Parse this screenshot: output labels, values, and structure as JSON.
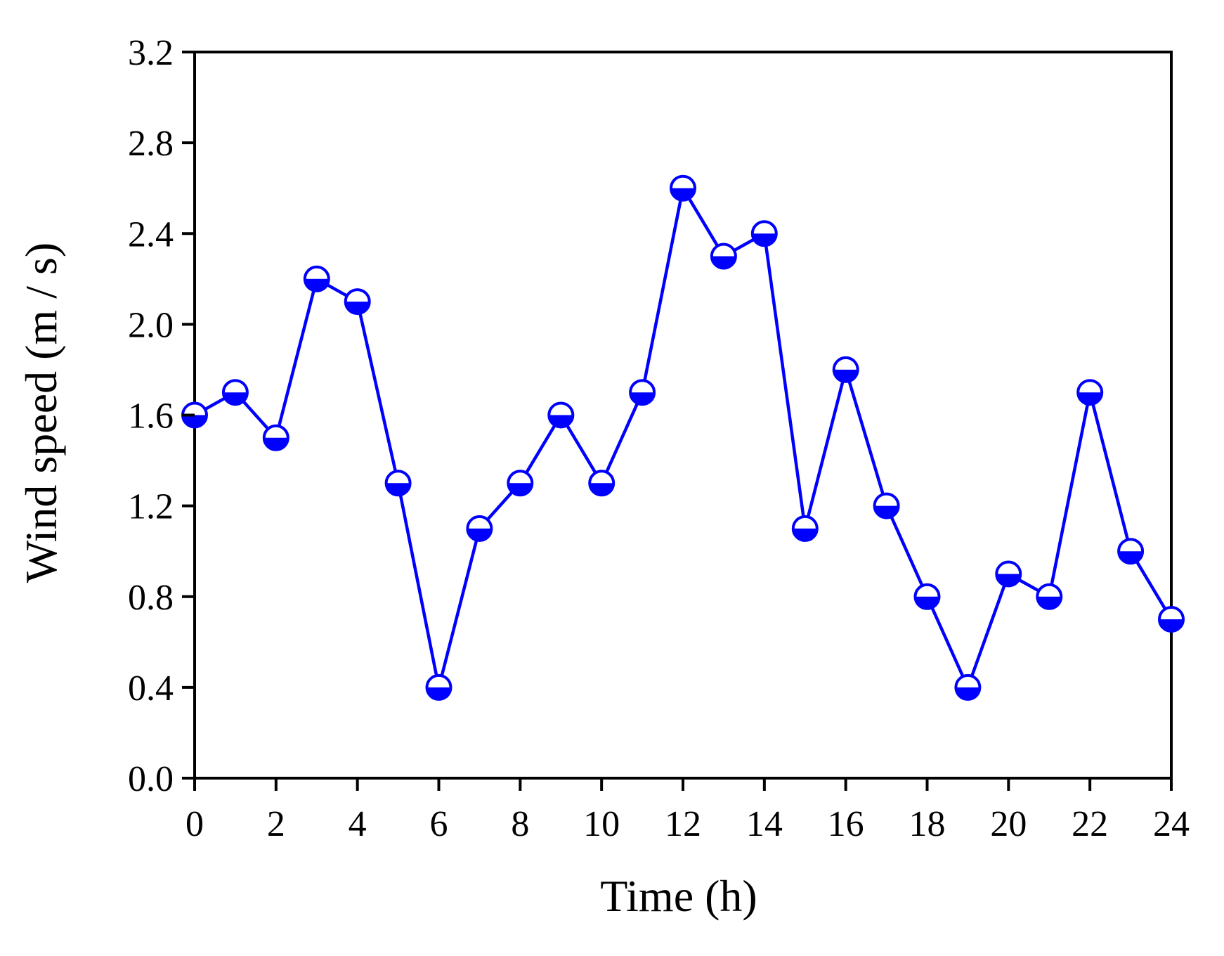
{
  "chart_data": {
    "type": "line",
    "title": "",
    "xlabel": "Time (h)",
    "ylabel": "Wind speed (m / s)",
    "xlim": [
      0,
      24
    ],
    "ylim": [
      0,
      3.2
    ],
    "x_ticks": [
      0,
      2,
      4,
      6,
      8,
      10,
      12,
      14,
      16,
      18,
      20,
      22,
      24
    ],
    "x_tick_labels": [
      "0",
      "2",
      "4",
      "6",
      "8",
      "10",
      "12",
      "14",
      "16",
      "18",
      "20",
      "22",
      "24"
    ],
    "y_ticks": [
      0,
      0.4,
      0.8,
      1.2,
      1.6,
      2.0,
      2.4,
      2.8,
      3.2
    ],
    "y_tick_labels": [
      "0.0",
      "0.4",
      "0.8",
      "1.2",
      "1.6",
      "2.0",
      "2.4",
      "2.8",
      "3.2"
    ],
    "grid": false,
    "legend": "none",
    "series": [
      {
        "color": "#0000ff",
        "marker": "half-filled-circle",
        "x": [
          0,
          1,
          2,
          3,
          4,
          5,
          6,
          7,
          8,
          9,
          10,
          11,
          12,
          13,
          14,
          15,
          16,
          17,
          18,
          19,
          20,
          21,
          22,
          23,
          24
        ],
        "values": [
          1.6,
          1.7,
          1.5,
          2.2,
          2.1,
          1.3,
          0.4,
          1.1,
          1.3,
          1.6,
          1.3,
          1.7,
          2.6,
          2.3,
          2.4,
          1.1,
          1.8,
          1.2,
          0.8,
          0.4,
          0.9,
          0.8,
          1.7,
          1.0,
          0.7
        ]
      }
    ]
  }
}
